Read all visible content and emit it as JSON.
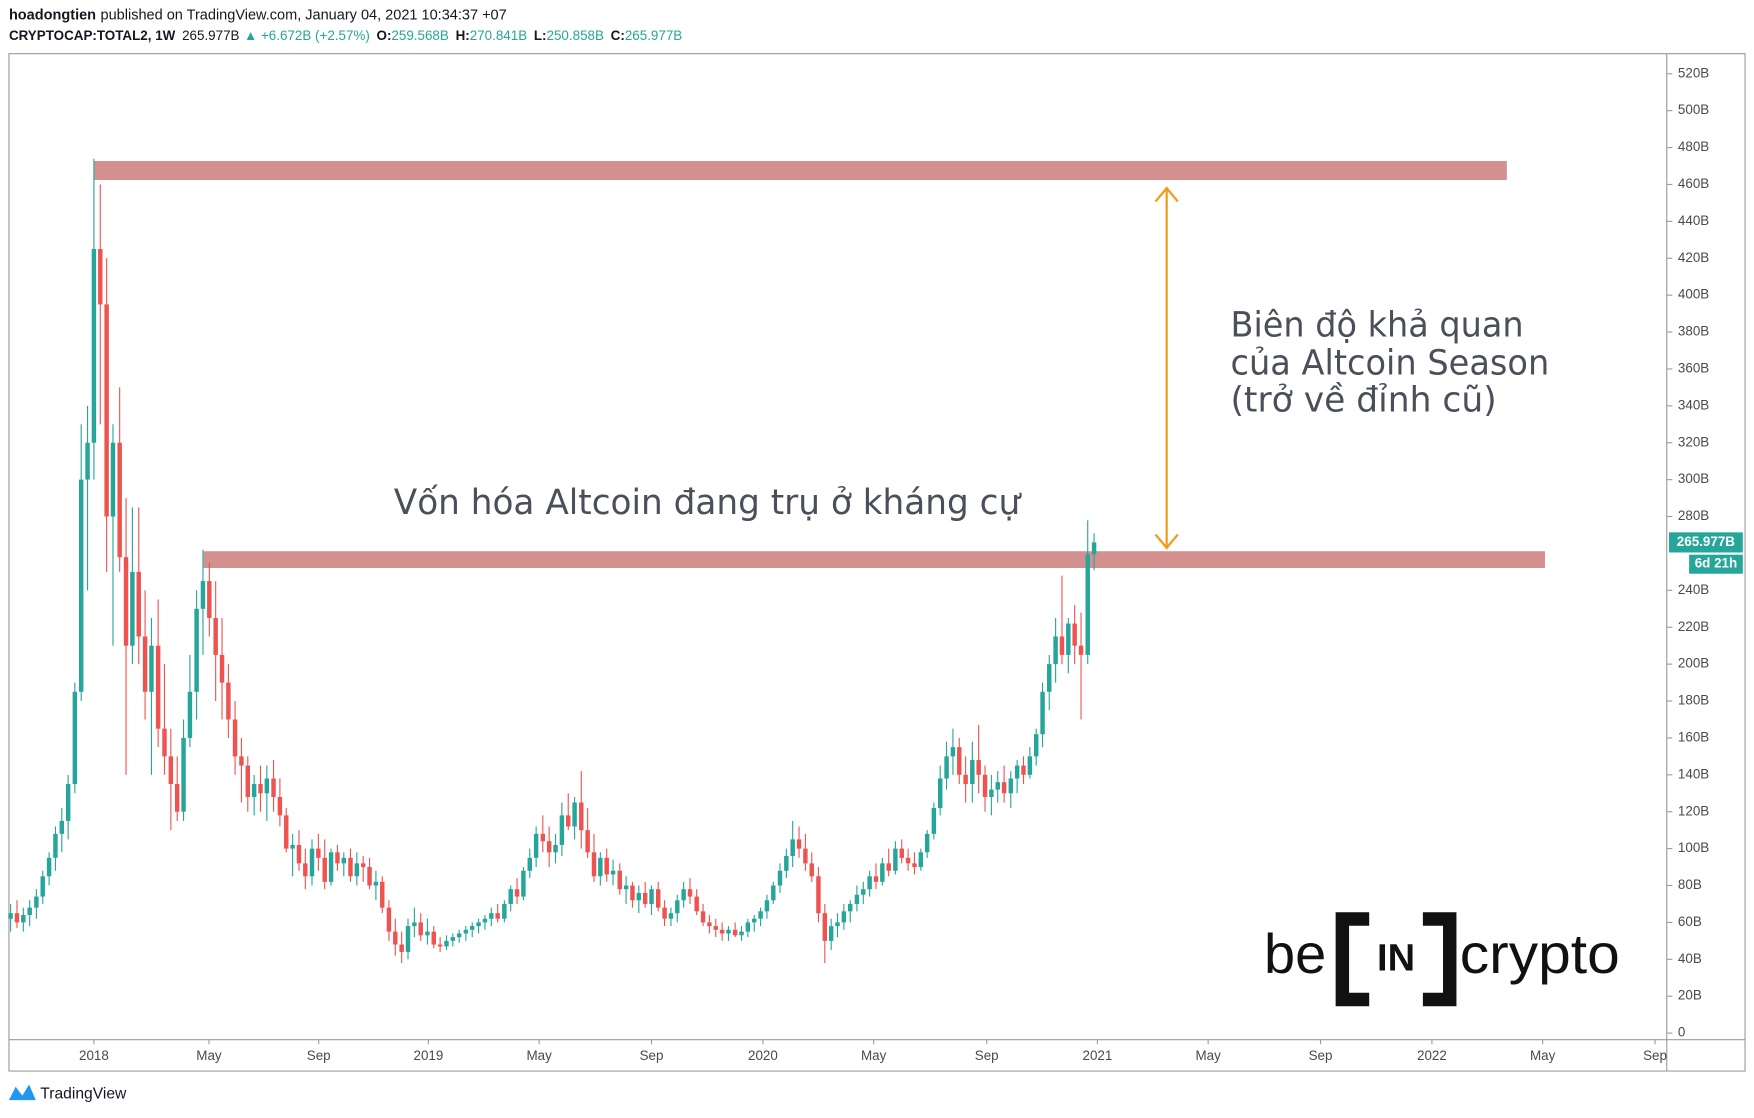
{
  "header": {
    "author": "hoadongtien",
    "published": "published on TradingView.com, January 04, 2021 10:34:37 +07"
  },
  "chart_data": {
    "type": "candlestick",
    "symbol": "CRYPTOCAP:TOTAL2, 1W",
    "last_label": "265.977B",
    "change_label": "▲ +6.672B (+2.57%)",
    "ohlc_labels": [
      {
        "key": "O:",
        "value": "259.568B"
      },
      {
        "key": "H:",
        "value": "270.841B"
      },
      {
        "key": "L:",
        "value": "250.858B"
      },
      {
        "key": "C:",
        "value": "265.977B"
      }
    ],
    "price_tag": "265.977B",
    "countdown": "6d 21h",
    "up_color": "#26a69a",
    "down_color": "#ef5350",
    "grid": false,
    "xlim": [
      2017.746,
      2022.702
    ],
    "ylim": [
      -3.6,
      530.9
    ],
    "xticks": [
      {
        "value": 2018,
        "label": "2018"
      },
      {
        "value": 2018.344,
        "label": "May"
      },
      {
        "value": 2018.672,
        "label": "Sep"
      },
      {
        "value": 2019,
        "label": "2019"
      },
      {
        "value": 2019.331,
        "label": "May"
      },
      {
        "value": 2019.667,
        "label": "Sep"
      },
      {
        "value": 2020,
        "label": "2020"
      },
      {
        "value": 2020.331,
        "label": "May"
      },
      {
        "value": 2020.669,
        "label": "Sep"
      },
      {
        "value": 2021,
        "label": "2021"
      },
      {
        "value": 2021.331,
        "label": "May"
      },
      {
        "value": 2021.667,
        "label": "Sep"
      },
      {
        "value": 2022,
        "label": "2022"
      },
      {
        "value": 2022.331,
        "label": "May"
      },
      {
        "value": 2022.667,
        "label": "Sep"
      }
    ],
    "yticks": [
      0,
      {
        "value": 20,
        "label": "20B"
      },
      {
        "value": 40,
        "label": "40B"
      },
      {
        "value": 60,
        "label": "60B"
      },
      {
        "value": 80,
        "label": "80B"
      },
      {
        "value": 100,
        "label": "100B"
      },
      {
        "value": 120,
        "label": "120B"
      },
      {
        "value": 140,
        "label": "140B"
      },
      {
        "value": 160,
        "label": "160B"
      },
      {
        "value": 180,
        "label": "180B"
      },
      {
        "value": 200,
        "label": "200B"
      },
      {
        "value": 220,
        "label": "220B"
      },
      {
        "value": 240,
        "label": "240B"
      },
      {
        "value": 280,
        "label": "280B"
      },
      {
        "value": 300,
        "label": "300B"
      },
      {
        "value": 320,
        "label": "320B"
      },
      {
        "value": 340,
        "label": "340B"
      },
      {
        "value": 360,
        "label": "360B"
      },
      {
        "value": 380,
        "label": "380B"
      },
      {
        "value": 400,
        "label": "400B"
      },
      {
        "value": 420,
        "label": "420B"
      },
      {
        "value": 440,
        "label": "440B"
      },
      {
        "value": 460,
        "label": "460B"
      },
      {
        "value": 480,
        "label": "480B"
      },
      {
        "value": 500,
        "label": "500B"
      },
      {
        "value": 520,
        "label": "520B"
      }
    ],
    "x": [
      2017.751,
      2017.77,
      2017.789,
      2017.808,
      2017.828,
      2017.847,
      2017.866,
      2017.885,
      2017.904,
      2017.923,
      2017.943,
      2017.962,
      2017.981,
      2018,
      2018.019,
      2018.038,
      2018.057,
      2018.077,
      2018.096,
      2018.115,
      2018.134,
      2018.153,
      2018.172,
      2018.192,
      2018.211,
      2018.23,
      2018.249,
      2018.268,
      2018.287,
      2018.307,
      2018.326,
      2018.345,
      2018.364,
      2018.383,
      2018.402,
      2018.422,
      2018.441,
      2018.46,
      2018.479,
      2018.498,
      2018.517,
      2018.537,
      2018.556,
      2018.575,
      2018.594,
      2018.613,
      2018.632,
      2018.652,
      2018.671,
      2018.69,
      2018.709,
      2018.728,
      2018.747,
      2018.767,
      2018.786,
      2018.805,
      2018.824,
      2018.843,
      2018.862,
      2018.882,
      2018.901,
      2018.92,
      2018.939,
      2018.958,
      2018.977,
      2018.997,
      2019.016,
      2019.035,
      2019.054,
      2019.073,
      2019.092,
      2019.112,
      2019.131,
      2019.15,
      2019.169,
      2019.188,
      2019.207,
      2019.227,
      2019.246,
      2019.265,
      2019.284,
      2019.303,
      2019.322,
      2019.342,
      2019.361,
      2019.38,
      2019.399,
      2019.418,
      2019.437,
      2019.457,
      2019.476,
      2019.495,
      2019.514,
      2019.533,
      2019.552,
      2019.572,
      2019.591,
      2019.61,
      2019.629,
      2019.648,
      2019.667,
      2019.687,
      2019.706,
      2019.725,
      2019.744,
      2019.763,
      2019.782,
      2019.802,
      2019.821,
      2019.84,
      2019.859,
      2019.878,
      2019.897,
      2019.917,
      2019.936,
      2019.955,
      2019.974,
      2019.993,
      2020.012,
      2020.031,
      2020.051,
      2020.07,
      2020.089,
      2020.108,
      2020.127,
      2020.146,
      2020.166,
      2020.185,
      2020.204,
      2020.223,
      2020.242,
      2020.261,
      2020.281,
      2020.3,
      2020.319,
      2020.338,
      2020.357,
      2020.376,
      2020.396,
      2020.415,
      2020.434,
      2020.453,
      2020.472,
      2020.491,
      2020.511,
      2020.53,
      2020.549,
      2020.568,
      2020.587,
      2020.606,
      2020.626,
      2020.645,
      2020.664,
      2020.683,
      2020.702,
      2020.721,
      2020.741,
      2020.76,
      2020.779,
      2020.798,
      2020.817,
      2020.836,
      2020.856,
      2020.875,
      2020.894,
      2020.913,
      2020.932,
      2020.951,
      2020.971,
      2020.99
    ],
    "open": [
      62,
      65,
      60,
      64,
      68,
      74,
      85,
      95,
      108,
      115,
      135,
      185,
      300,
      320,
      425,
      395,
      280,
      320,
      258,
      210,
      250,
      215,
      185,
      210,
      165,
      150,
      135,
      120,
      160,
      185,
      230,
      245,
      225,
      205,
      190,
      170,
      150,
      145,
      128,
      135,
      130,
      138,
      128,
      118,
      100,
      102,
      92,
      85,
      100,
      95,
      82,
      98,
      92,
      95,
      85,
      92,
      90,
      80,
      82,
      68,
      55,
      48,
      44,
      58,
      60,
      53,
      55,
      48,
      47,
      50,
      52,
      54,
      56,
      58,
      60,
      62,
      65,
      62,
      70,
      78,
      74,
      88,
      95,
      108,
      104,
      98,
      102,
      118,
      112,
      125,
      110,
      98,
      85,
      95,
      86,
      88,
      78,
      80,
      72,
      76,
      70,
      78,
      68,
      62,
      65,
      72,
      78,
      74,
      66,
      60,
      58,
      56,
      54,
      56,
      53,
      55,
      60,
      62,
      66,
      72,
      80,
      88,
      96,
      105,
      100,
      92,
      85,
      65,
      50,
      58,
      60,
      66,
      70,
      75,
      78,
      85,
      82,
      92,
      88,
      100,
      95,
      92,
      90,
      98,
      108,
      122,
      138,
      150,
      155,
      140,
      135,
      148,
      140,
      128,
      132,
      136,
      130,
      138,
      145,
      140,
      150,
      162,
      185,
      200,
      215,
      205,
      222,
      210,
      205,
      259.568
    ],
    "high": [
      70,
      72,
      68,
      72,
      78,
      88,
      98,
      112,
      122,
      140,
      190,
      330,
      340,
      474,
      460,
      420,
      330,
      350,
      290,
      285,
      285,
      240,
      225,
      235,
      200,
      165,
      150,
      170,
      205,
      240,
      262,
      255,
      245,
      225,
      200,
      180,
      160,
      150,
      140,
      145,
      145,
      148,
      138,
      122,
      108,
      110,
      100,
      105,
      108,
      105,
      100,
      102,
      98,
      100,
      98,
      96,
      95,
      88,
      85,
      72,
      62,
      55,
      62,
      68,
      65,
      62,
      58,
      52,
      53,
      54,
      56,
      58,
      60,
      62,
      64,
      68,
      70,
      72,
      80,
      84,
      90,
      100,
      112,
      118,
      112,
      108,
      125,
      130,
      128,
      142,
      122,
      108,
      98,
      100,
      94,
      92,
      85,
      82,
      80,
      82,
      80,
      82,
      72,
      68,
      75,
      82,
      84,
      78,
      70,
      64,
      62,
      60,
      58,
      60,
      58,
      62,
      64,
      68,
      75,
      82,
      92,
      100,
      115,
      112,
      108,
      98,
      90,
      70,
      62,
      65,
      70,
      72,
      80,
      82,
      88,
      92,
      95,
      100,
      104,
      105,
      100,
      98,
      100,
      110,
      125,
      145,
      158,
      165,
      160,
      150,
      158,
      167,
      145,
      140,
      142,
      145,
      142,
      148,
      150,
      155,
      165,
      190,
      205,
      225,
      248,
      225,
      232,
      228,
      278,
      270.841
    ],
    "low": [
      55,
      57,
      55,
      58,
      62,
      70,
      80,
      88,
      98,
      105,
      130,
      180,
      240,
      300,
      330,
      250,
      210,
      250,
      140,
      200,
      200,
      170,
      140,
      155,
      140,
      110,
      115,
      115,
      155,
      170,
      205,
      215,
      180,
      170,
      160,
      140,
      125,
      120,
      118,
      120,
      115,
      120,
      112,
      98,
      85,
      88,
      78,
      80,
      88,
      78,
      80,
      88,
      85,
      82,
      80,
      82,
      78,
      72,
      65,
      50,
      42,
      38,
      40,
      52,
      50,
      48,
      46,
      44,
      45,
      47,
      49,
      50,
      52,
      54,
      56,
      58,
      60,
      60,
      66,
      70,
      72,
      84,
      90,
      98,
      90,
      92,
      96,
      110,
      105,
      100,
      95,
      82,
      80,
      82,
      80,
      75,
      70,
      68,
      65,
      68,
      64,
      66,
      58,
      58,
      60,
      68,
      70,
      64,
      58,
      54,
      52,
      50,
      50,
      52,
      50,
      52,
      55,
      58,
      62,
      70,
      76,
      84,
      90,
      95,
      88,
      82,
      60,
      38,
      45,
      52,
      56,
      60,
      66,
      70,
      74,
      78,
      80,
      85,
      86,
      92,
      88,
      86,
      88,
      95,
      105,
      118,
      132,
      140,
      135,
      125,
      125,
      130,
      120,
      118,
      125,
      125,
      122,
      130,
      135,
      138,
      145,
      155,
      175,
      190,
      200,
      195,
      200,
      170,
      200,
      250.858
    ],
    "close": [
      65,
      60,
      64,
      68,
      74,
      85,
      95,
      108,
      115,
      135,
      185,
      300,
      320,
      425,
      395,
      280,
      320,
      258,
      210,
      250,
      215,
      185,
      210,
      165,
      150,
      135,
      120,
      160,
      185,
      230,
      245,
      225,
      205,
      190,
      170,
      150,
      145,
      128,
      135,
      130,
      138,
      128,
      118,
      100,
      102,
      92,
      85,
      100,
      95,
      82,
      98,
      92,
      95,
      85,
      92,
      90,
      80,
      82,
      68,
      55,
      48,
      44,
      58,
      60,
      53,
      55,
      48,
      47,
      50,
      52,
      54,
      56,
      58,
      60,
      62,
      65,
      62,
      70,
      78,
      74,
      88,
      95,
      108,
      104,
      98,
      102,
      118,
      112,
      125,
      110,
      98,
      85,
      95,
      86,
      88,
      78,
      80,
      72,
      76,
      70,
      78,
      68,
      62,
      65,
      72,
      78,
      74,
      66,
      60,
      58,
      56,
      54,
      56,
      53,
      55,
      60,
      62,
      66,
      72,
      80,
      88,
      96,
      105,
      100,
      92,
      85,
      65,
      50,
      58,
      60,
      66,
      70,
      75,
      78,
      85,
      82,
      92,
      88,
      100,
      95,
      92,
      90,
      98,
      108,
      122,
      138,
      150,
      155,
      140,
      135,
      148,
      140,
      128,
      132,
      136,
      130,
      138,
      145,
      140,
      150,
      162,
      185,
      200,
      215,
      205,
      222,
      210,
      205,
      259.568,
      265.977
    ],
    "annotations": {
      "zones": [
        {
          "x": [
            2018,
            2022.224
          ],
          "y": [
            462.4,
            472.7
          ],
          "color": "#d4908f"
        },
        {
          "x": [
            2018.328,
            2022.338
          ],
          "y": [
            252.1,
            261.2
          ],
          "color": "#d4908f"
        }
      ],
      "arrow": {
        "x": 2021.207,
        "y": [
          263,
          458
        ],
        "color": "#f59b1c"
      },
      "resistance_text": "Vốn hóa Altcoin đang trụ ở kháng cự",
      "range_text": [
        "Biên độ khả quan",
        "của Altcoin Season",
        "(trở về đỉnh cũ)"
      ]
    }
  },
  "logo": {
    "left": "be",
    "mid": "IN",
    "right": "crypto"
  },
  "footer": {
    "brand": "TradingView"
  }
}
